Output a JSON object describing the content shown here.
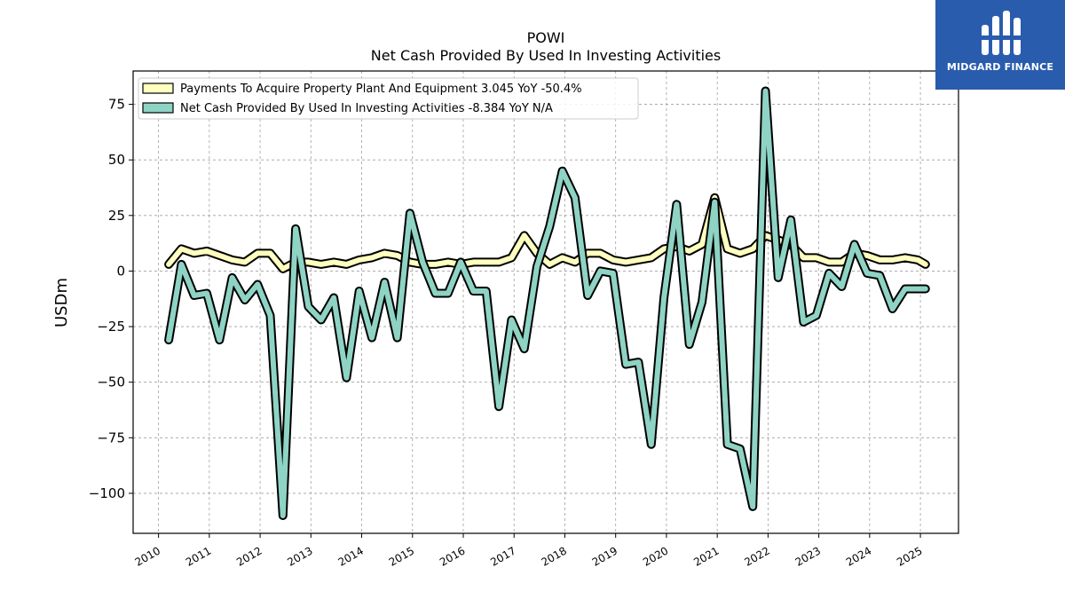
{
  "chart_data": {
    "type": "line",
    "title": "POWI",
    "subtitle": "Net Cash Provided By Used In Investing Activities",
    "xlabel": "",
    "ylabel": "USDm",
    "ylim": [
      -118,
      90
    ],
    "xlim": [
      2009.5,
      2025.75
    ],
    "yticks": [
      75,
      50,
      25,
      0,
      -25,
      -50,
      -75,
      -100
    ],
    "ytick_labels": [
      "75",
      "50",
      "25",
      "0",
      "−25",
      "−50",
      "−75",
      "−100"
    ],
    "xticks": [
      2010,
      2011,
      2012,
      2013,
      2014,
      2015,
      2016,
      2017,
      2018,
      2019,
      2020,
      2021,
      2022,
      2023,
      2024,
      2025
    ],
    "xtick_labels": [
      "2010",
      "2011",
      "2012",
      "2013",
      "2014",
      "2015",
      "2016",
      "2017",
      "2018",
      "2019",
      "2020",
      "2021",
      "2022",
      "2023",
      "2024",
      "2025"
    ],
    "grid": true,
    "legend_position": "top-left",
    "series": [
      {
        "name": "Payments To Acquire Property Plant And Equipment  3.045 YoY -50.4%",
        "color": "#ffffbf",
        "x": [
          2010.2,
          2010.45,
          2010.7,
          2010.95,
          2011.2,
          2011.45,
          2011.7,
          2011.95,
          2012.2,
          2012.45,
          2012.7,
          2012.95,
          2013.2,
          2013.45,
          2013.7,
          2013.95,
          2014.2,
          2014.45,
          2014.7,
          2014.95,
          2015.2,
          2015.45,
          2015.7,
          2015.95,
          2016.2,
          2016.45,
          2016.7,
          2016.95,
          2017.2,
          2017.45,
          2017.7,
          2017.95,
          2018.2,
          2018.45,
          2018.7,
          2018.95,
          2019.2,
          2019.45,
          2019.7,
          2019.95,
          2020.2,
          2020.45,
          2020.7,
          2020.95,
          2021.2,
          2021.45,
          2021.7,
          2021.95,
          2022.2,
          2022.45,
          2022.7,
          2022.95,
          2023.2,
          2023.45,
          2023.7,
          2023.95,
          2024.2,
          2024.45,
          2024.7,
          2024.95,
          2025.1
        ],
        "values": [
          3,
          10,
          8,
          9,
          7,
          5,
          4,
          8,
          8,
          1,
          4,
          4,
          3,
          4,
          3,
          5,
          6,
          8,
          7,
          4,
          3,
          3,
          4,
          3,
          4,
          4,
          4,
          6,
          16,
          8,
          3,
          6,
          4,
          8,
          8,
          5,
          4,
          5,
          6,
          10,
          11,
          9,
          12,
          33,
          10,
          8,
          10,
          16,
          14,
          12,
          6,
          6,
          4,
          4,
          8,
          7,
          5,
          5,
          6,
          5,
          3
        ],
        "stroke_width": 7
      },
      {
        "name": "Net Cash Provided By Used In Investing Activities  -8.384 YoY N/A",
        "color": "#8ed3c4",
        "x": [
          2010.2,
          2010.45,
          2010.7,
          2010.95,
          2011.2,
          2011.45,
          2011.7,
          2011.95,
          2012.2,
          2012.45,
          2012.7,
          2012.95,
          2013.2,
          2013.45,
          2013.7,
          2013.95,
          2014.2,
          2014.45,
          2014.7,
          2014.95,
          2015.2,
          2015.45,
          2015.7,
          2015.95,
          2016.2,
          2016.45,
          2016.7,
          2016.95,
          2017.2,
          2017.45,
          2017.7,
          2017.95,
          2018.2,
          2018.45,
          2018.7,
          2018.95,
          2019.2,
          2019.45,
          2019.7,
          2019.95,
          2020.2,
          2020.45,
          2020.7,
          2020.95,
          2021.2,
          2021.45,
          2021.7,
          2021.95,
          2022.2,
          2022.45,
          2022.7,
          2022.95,
          2023.2,
          2023.45,
          2023.7,
          2023.95,
          2024.2,
          2024.45,
          2024.7,
          2024.95,
          2025.1
        ],
        "values": [
          -31,
          3,
          -11,
          -10,
          -31,
          -3,
          -13,
          -6,
          -20,
          -110,
          19,
          -16,
          -22,
          -12,
          -48,
          -9,
          -30,
          -5,
          -30,
          26,
          4,
          -10,
          -10,
          4,
          -9,
          -9,
          -61,
          -22,
          -35,
          2,
          20,
          45,
          33,
          -11,
          0,
          -1,
          -42,
          -41,
          -78,
          -12,
          30,
          -33,
          -14,
          31,
          -78,
          -80,
          -106,
          81,
          -3,
          23,
          -23,
          -20,
          -1,
          -7,
          12,
          -1,
          -2,
          -17,
          -8,
          -8,
          -8
        ],
        "stroke_width": 7
      }
    ]
  },
  "branding": {
    "logo_text": "MIDGARD FINANCE",
    "logo_bg": "#2a5cae",
    "logo_fg": "#ffffff"
  }
}
